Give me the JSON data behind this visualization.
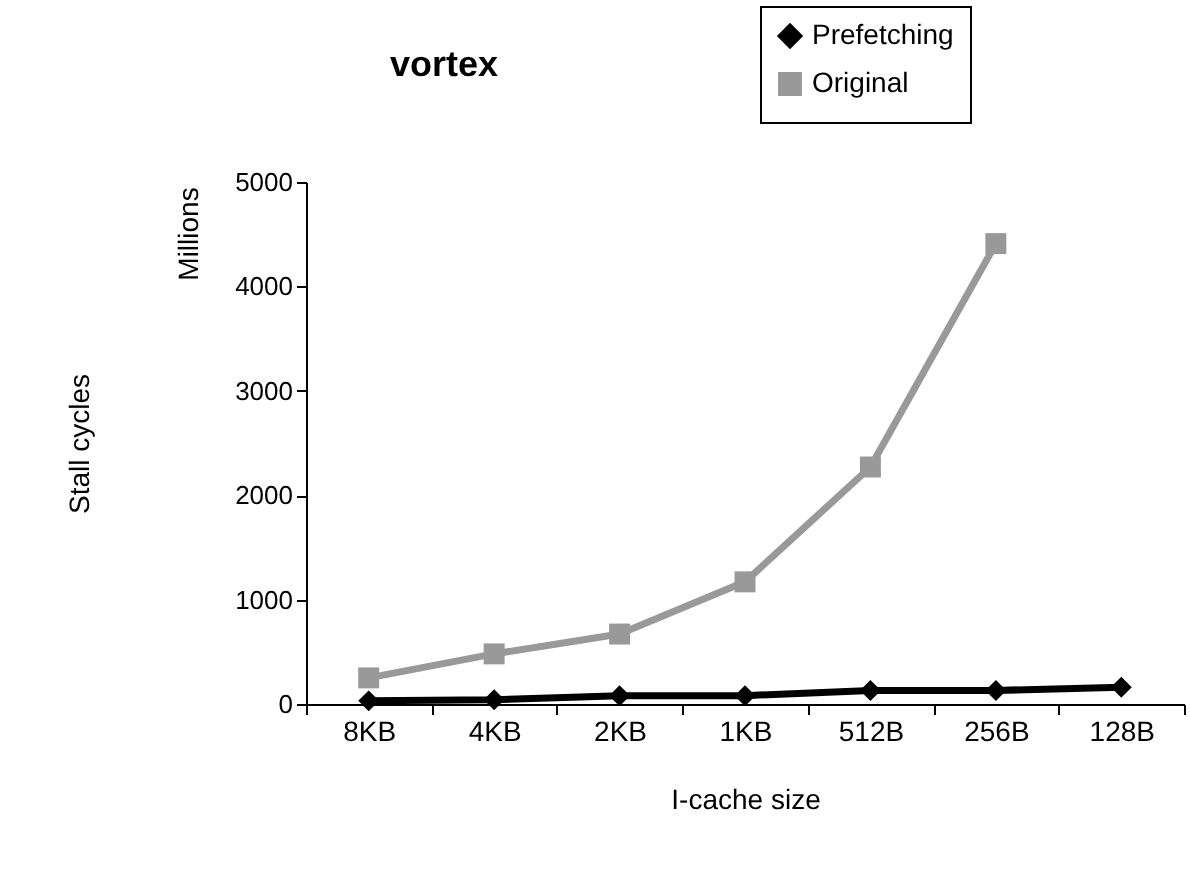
{
  "chart_data": {
    "type": "line",
    "title": "vortex",
    "xlabel": "I-cache size",
    "ylabel": "Stall cycles",
    "annotations": [
      "Millions"
    ],
    "categories": [
      "8KB",
      "4KB",
      "2KB",
      "1KB",
      "512B",
      "256B",
      "128B"
    ],
    "series": [
      {
        "name": "Prefetching",
        "color": "#000000",
        "marker": "diamond",
        "values": [
          30,
          40,
          80,
          80,
          130,
          130,
          160
        ]
      },
      {
        "name": "Original",
        "color": "#999999",
        "marker": "square",
        "values": [
          250,
          480,
          670,
          1170,
          2270,
          4410,
          null
        ]
      }
    ],
    "ylim": [
      0,
      5000
    ],
    "yticks": [
      0,
      1000,
      2000,
      3000,
      4000,
      5000
    ],
    "grid": false,
    "legend": "top right",
    "line_style": "solid"
  }
}
